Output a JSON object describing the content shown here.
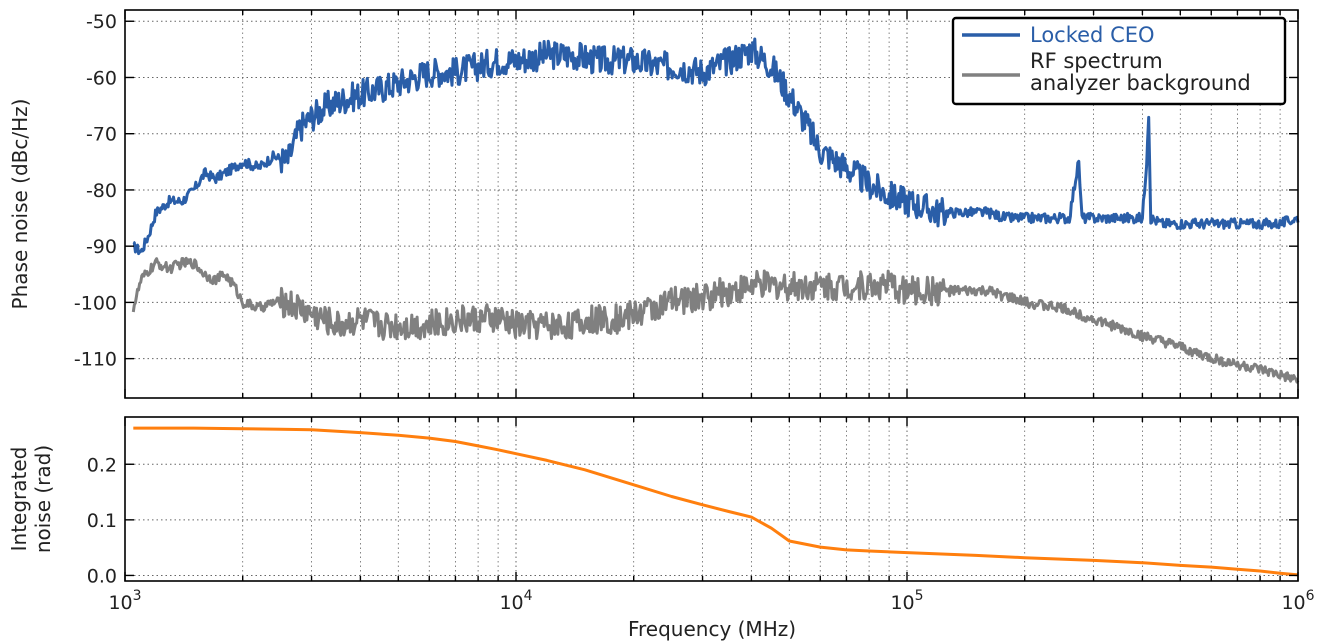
{
  "chart_data": [
    {
      "type": "line",
      "x_scale": "log",
      "xlim": [
        1000,
        1000000
      ],
      "ylim": [
        -117,
        -48
      ],
      "ylabel": "Phase noise (dBc/Hz)",
      "yticks": [
        -50,
        -60,
        -70,
        -80,
        -90,
        -100,
        -110
      ],
      "ytick_labels": [
        "-50",
        "-60",
        "-70",
        "-80",
        "-90",
        "-100",
        "-110"
      ],
      "grid": true,
      "legend_position": "top-right",
      "series": [
        {
          "name": "Locked CEO",
          "color": "#2a5ea8",
          "x": [
            1050,
            1100,
            1150,
            1200,
            1300,
            1400,
            1500,
            1600,
            1700,
            1800,
            1900,
            2000,
            2200,
            2400,
            2600,
            2800,
            3000,
            3300,
            3600,
            4000,
            4500,
            5000,
            5500,
            6000,
            7000,
            8000,
            9000,
            10000,
            12000,
            14000,
            16000,
            18000,
            20000,
            23000,
            26000,
            30000,
            35000,
            40000,
            45000,
            50000,
            55000,
            60000,
            70000,
            80000,
            90000,
            100000,
            110000,
            120000,
            140000,
            160000,
            180000,
            200000,
            230000,
            260000,
            270000,
            275000,
            280000,
            300000,
            350000,
            400000,
            410000,
            415000,
            420000,
            450000,
            500000,
            600000,
            700000,
            800000,
            900000,
            1000000
          ],
          "y": [
            -90,
            -91,
            -88,
            -84,
            -82,
            -82,
            -80,
            -77,
            -78,
            -77,
            -76,
            -75,
            -76,
            -74,
            -75,
            -69,
            -67,
            -65,
            -64,
            -63,
            -62,
            -61,
            -60,
            -59,
            -59,
            -58,
            -57,
            -57,
            -56,
            -56,
            -57,
            -57,
            -57,
            -58,
            -58,
            -59,
            -57,
            -55,
            -58,
            -63,
            -68,
            -73,
            -76,
            -79,
            -81,
            -82,
            -83,
            -84,
            -84,
            -84,
            -85,
            -85,
            -85,
            -85,
            -78,
            -75,
            -85,
            -85,
            -85,
            -85,
            -75,
            -66,
            -85,
            -86,
            -86,
            -86,
            -86,
            -86,
            -86,
            -85
          ]
        },
        {
          "name": "RF spectrum analyzer background",
          "color": "#808080",
          "x": [
            1050,
            1100,
            1200,
            1300,
            1400,
            1500,
            1600,
            1700,
            1800,
            1900,
            2000,
            2200,
            2400,
            2600,
            2800,
            3000,
            3500,
            4000,
            4500,
            5000,
            5500,
            6000,
            7000,
            8000,
            9000,
            10000,
            12000,
            14000,
            16000,
            18000,
            20000,
            25000,
            30000,
            35000,
            40000,
            45000,
            50000,
            60000,
            70000,
            80000,
            90000,
            100000,
            120000,
            140000,
            160000,
            180000,
            200000,
            250000,
            300000,
            400000,
            500000,
            600000,
            700000,
            800000,
            900000,
            1000000
          ],
          "y": [
            -101,
            -96,
            -93,
            -94,
            -93,
            -93,
            -95,
            -96,
            -95,
            -97,
            -100,
            -101,
            -100,
            -100,
            -101,
            -102,
            -104,
            -103,
            -104,
            -104,
            -104,
            -104,
            -103,
            -103,
            -103,
            -104,
            -104,
            -104,
            -103,
            -103,
            -102,
            -100,
            -99,
            -98,
            -97,
            -97,
            -97,
            -97,
            -97,
            -97,
            -97,
            -98,
            -98,
            -98,
            -98,
            -99,
            -100,
            -101,
            -103,
            -106,
            -108,
            -110,
            -111,
            -112,
            -113,
            -114
          ]
        }
      ]
    },
    {
      "type": "line",
      "x_scale": "log",
      "xlim": [
        1000,
        1000000
      ],
      "ylim": [
        -0.01,
        0.285
      ],
      "xlabel": "Frequency (MHz)",
      "ylabel_lines": [
        "Integrated",
        "noise (rad)"
      ],
      "yticks": [
        0.0,
        0.1,
        0.2
      ],
      "ytick_labels": [
        "0.0",
        "0.1",
        "0.2"
      ],
      "xticks": [
        1000,
        10000,
        100000,
        1000000
      ],
      "xtick_labels": [
        {
          "base": "10",
          "exp": "3"
        },
        {
          "base": "10",
          "exp": "4"
        },
        {
          "base": "10",
          "exp": "5"
        },
        {
          "base": "10",
          "exp": "6"
        }
      ],
      "grid": true,
      "series": [
        {
          "color": "#ff7f0e",
          "x": [
            1050,
            1500,
            2000,
            2500,
            3000,
            4000,
            5000,
            6000,
            7000,
            8000,
            9000,
            10000,
            12000,
            15000,
            18000,
            20000,
            25000,
            30000,
            35000,
            40000,
            45000,
            50000,
            60000,
            70000,
            80000,
            100000,
            150000,
            200000,
            300000,
            400000,
            500000,
            600000,
            700000,
            800000,
            900000,
            1000000
          ],
          "y": [
            0.265,
            0.265,
            0.264,
            0.263,
            0.262,
            0.257,
            0.252,
            0.247,
            0.241,
            0.233,
            0.226,
            0.219,
            0.207,
            0.19,
            0.173,
            0.163,
            0.142,
            0.127,
            0.115,
            0.105,
            0.085,
            0.062,
            0.051,
            0.046,
            0.044,
            0.041,
            0.036,
            0.032,
            0.027,
            0.023,
            0.018,
            0.015,
            0.011,
            0.008,
            0.004,
            0.001
          ]
        }
      ]
    }
  ]
}
